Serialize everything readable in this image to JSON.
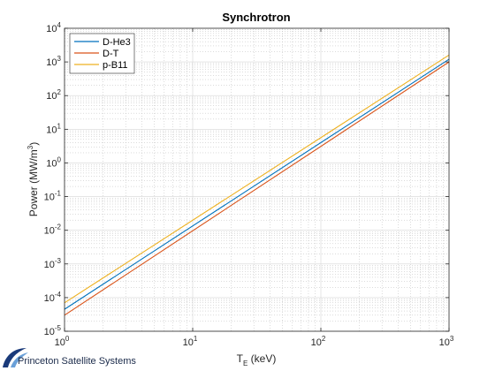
{
  "chart_data": {
    "type": "line",
    "title": "Synchrotron",
    "xlabel": {
      "base": "T",
      "sub": "E",
      "rest": " (keV)"
    },
    "ylabel": {
      "base": "Power (MW/m",
      "sup": "3",
      "rest": ")"
    },
    "xscale": "log",
    "yscale": "log",
    "xlim": [
      1,
      1000
    ],
    "ylim": [
      1e-05,
      10000
    ],
    "grid": "major-and-minor",
    "legend_position": "top-left",
    "x_ticks": [
      {
        "base": "10",
        "exp": "0",
        "value": 1
      },
      {
        "base": "10",
        "exp": "1",
        "value": 10
      },
      {
        "base": "10",
        "exp": "2",
        "value": 100
      },
      {
        "base": "10",
        "exp": "3",
        "value": 1000
      }
    ],
    "y_ticks": [
      {
        "base": "10",
        "exp": "-5",
        "value": 1e-05
      },
      {
        "base": "10",
        "exp": "-4",
        "value": 0.0001
      },
      {
        "base": "10",
        "exp": "-3",
        "value": 0.001
      },
      {
        "base": "10",
        "exp": "-2",
        "value": 0.01
      },
      {
        "base": "10",
        "exp": "-1",
        "value": 0.1
      },
      {
        "base": "10",
        "exp": "0",
        "value": 1
      },
      {
        "base": "10",
        "exp": "1",
        "value": 10
      },
      {
        "base": "10",
        "exp": "2",
        "value": 100
      },
      {
        "base": "10",
        "exp": "3",
        "value": 1000
      },
      {
        "base": "10",
        "exp": "4",
        "value": 10000
      }
    ],
    "series": [
      {
        "name": "D-He3",
        "color": "#0072BD",
        "x": [
          1,
          1000
        ],
        "y": [
          4.5e-05,
          1200
        ]
      },
      {
        "name": "D-T",
        "color": "#D95319",
        "x": [
          1,
          1000
        ],
        "y": [
          3e-05,
          1000
        ]
      },
      {
        "name": "p-B11",
        "color": "#EDB120",
        "x": [
          1,
          1000
        ],
        "y": [
          7e-05,
          1600
        ]
      }
    ]
  },
  "branding": {
    "company": "Princeton Satellite Systems"
  }
}
